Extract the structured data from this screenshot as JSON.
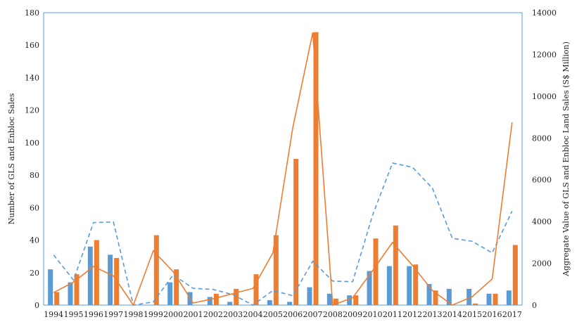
{
  "chart_data": {
    "type": "bar",
    "title": "",
    "categories": [
      "1994",
      "1995",
      "1996",
      "1997",
      "1998",
      "1999",
      "2000",
      "2001",
      "2002",
      "2003",
      "2004",
      "2005",
      "2006",
      "2007",
      "2008",
      "2009",
      "2010",
      "2011",
      "2012",
      "2013",
      "2014",
      "2015",
      "2016",
      "2017"
    ],
    "ylabel": "Number of GLS and Enbloc Sales",
    "y2label": "Aggregate Value of GLS and Enbloc Land Sales (S$ Million)",
    "ylim": [
      0,
      180
    ],
    "y2lim": [
      0,
      14000
    ],
    "yticks": [
      "0",
      "20",
      "40",
      "60",
      "80",
      "100",
      "120",
      "140",
      "160",
      "180"
    ],
    "y2ticks": [
      "0",
      "2000",
      "4000",
      "6000",
      "8000",
      "10000",
      "12000",
      "14000"
    ],
    "grid": false,
    "legend": "none",
    "series": [
      {
        "type": "bar",
        "axis": "left",
        "color": "#5b9bd5",
        "values": [
          22,
          14,
          36,
          31,
          0,
          0,
          14,
          8,
          5,
          2,
          0,
          3,
          2,
          11,
          7,
          6,
          21,
          24,
          24,
          13,
          10,
          10,
          7,
          9
        ]
      },
      {
        "type": "bar",
        "axis": "left",
        "color": "#ed7d31",
        "values": [
          8,
          19,
          40,
          29,
          0,
          43,
          22,
          0,
          7,
          10,
          19,
          43,
          90,
          168,
          4,
          6,
          41,
          49,
          25,
          9,
          0,
          1,
          7,
          37
        ]
      },
      {
        "type": "line",
        "axis": "right",
        "style": "dashed",
        "color": "#5b9bd5",
        "values": [
          2400,
          1200,
          3950,
          3980,
          0,
          150,
          1450,
          800,
          750,
          500,
          0,
          700,
          450,
          2100,
          1150,
          1120,
          4300,
          6800,
          6600,
          5600,
          3200,
          3050,
          2500,
          4500
        ]
      },
      {
        "type": "line",
        "axis": "right",
        "style": "solid",
        "color": "#ed7d31",
        "values": [
          600,
          1100,
          1850,
          1400,
          0,
          2600,
          1600,
          100,
          300,
          550,
          800,
          2500,
          8500,
          13050,
          0,
          350,
          1650,
          3000,
          1900,
          700,
          0,
          400,
          1250,
          8750
        ]
      }
    ]
  }
}
